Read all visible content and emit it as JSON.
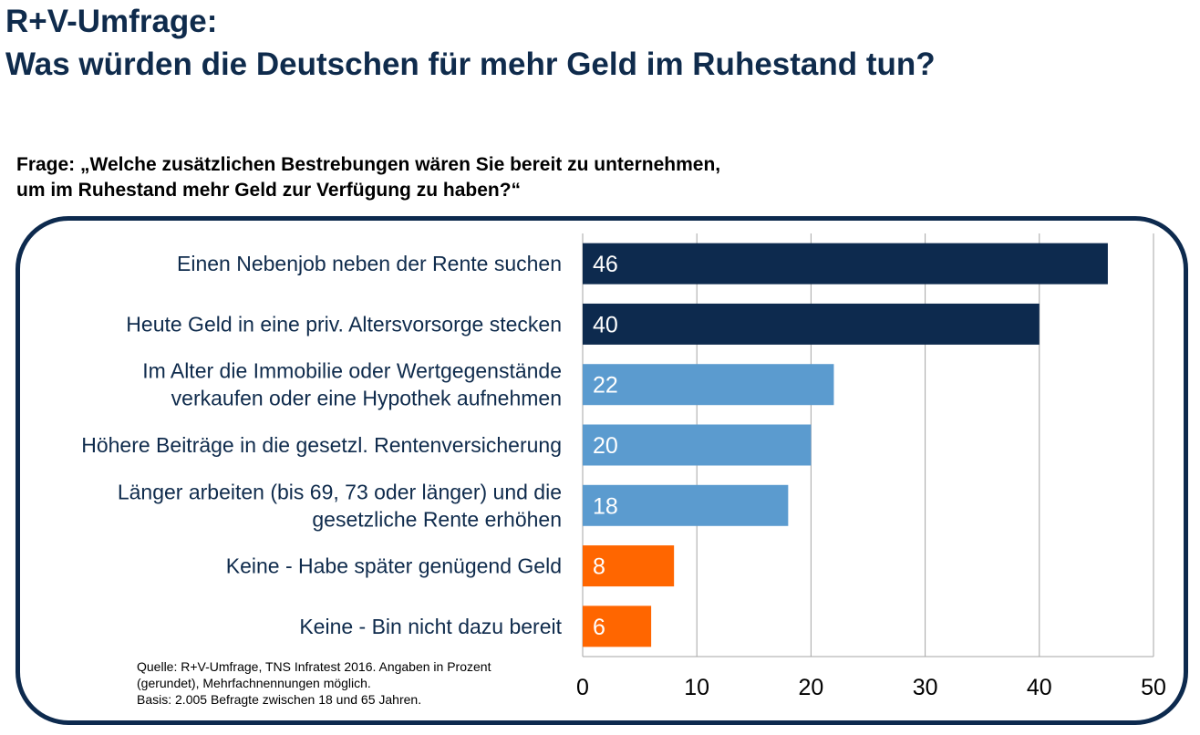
{
  "title": {
    "line1": "R+V-Umfrage:",
    "line2": "Was würden die Deutschen für mehr Geld im Ruhestand tun?"
  },
  "question": {
    "line1": "Frage: „Welche zusätzlichen Bestrebungen wären Sie bereit zu unternehmen,",
    "line2": "um im Ruhestand mehr Geld zur Verfügung zu haben?“"
  },
  "source": {
    "line1": "Quelle: R+V-Umfrage, TNS Infratest 2016. Angaben in Prozent",
    "line2": "(gerundet), Mehrfachnennungen möglich.",
    "line3": "Basis: 2.005 Befragte zwischen 18 und 65 Jahren."
  },
  "colors": {
    "title": "#0f2b4c",
    "frame": "#0d2a4e",
    "grid": "#a6a6a6"
  },
  "chart_data": {
    "type": "bar",
    "orientation": "horizontal",
    "categories": [
      [
        "Einen Nebenjob neben der Rente suchen"
      ],
      [
        "Heute Geld in eine priv. Altersvorsorge stecken"
      ],
      [
        "Im Alter die Immobilie oder Wertgegenstände",
        "verkaufen oder eine Hypothek aufnehmen"
      ],
      [
        "Höhere Beiträge in die gesetzl. Rentenversicherung"
      ],
      [
        "Länger arbeiten (bis 69, 73 oder länger) und die",
        "gesetzliche Rente erhöhen"
      ],
      [
        "Keine - Habe später genügend Geld"
      ],
      [
        "Keine - Bin nicht dazu bereit"
      ]
    ],
    "values": [
      46,
      40,
      22,
      20,
      18,
      8,
      6
    ],
    "bar_colors": [
      "#0d2a4e",
      "#0d2a4e",
      "#5b9bcf",
      "#5b9bcf",
      "#5b9bcf",
      "#ff6600",
      "#ff6600"
    ],
    "data_labels": [
      "46",
      "40",
      "22",
      "20",
      "18",
      "8",
      "6"
    ],
    "xlim": [
      0,
      50
    ],
    "xticks": [
      0,
      10,
      20,
      30,
      40,
      50
    ],
    "grid": "vertical"
  }
}
